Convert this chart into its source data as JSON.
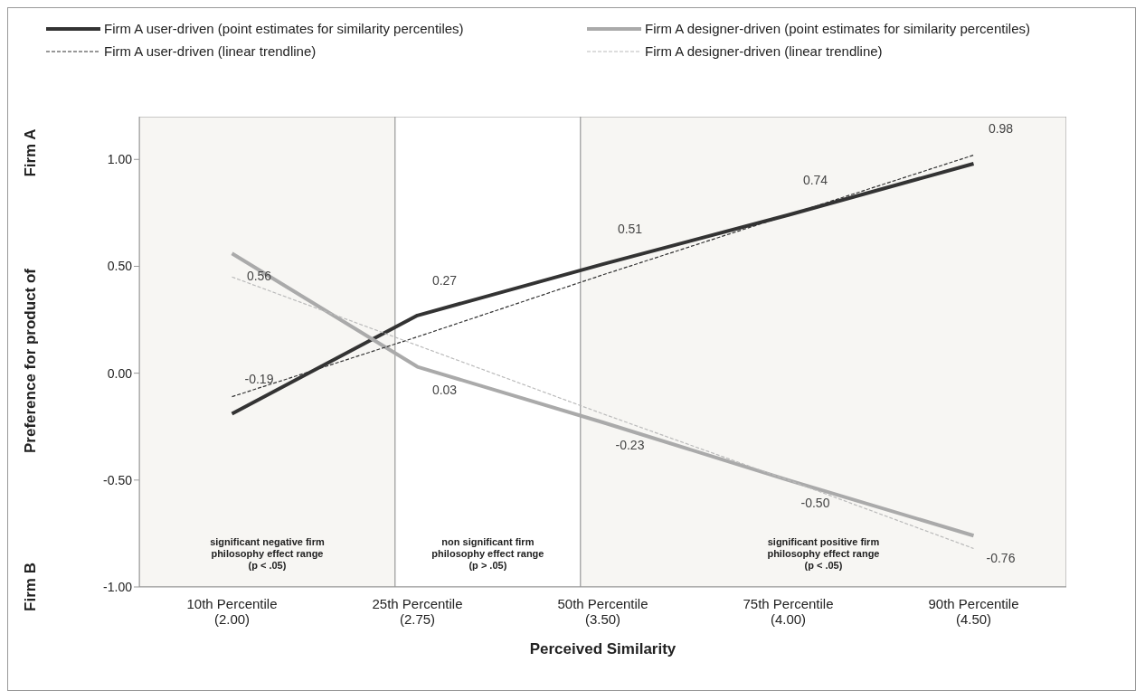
{
  "chart_data": {
    "type": "line",
    "categories": [
      "10th Percentile\n(2.00)",
      "25th Percentile\n(2.75)",
      "50th Percentile\n(3.50)",
      "75th Percentile\n(4.00)",
      "90th Percentile\n(4.50)"
    ],
    "xlabel": "Perceived Similarity",
    "ylabel": "Preference for product of",
    "annotations": [
      "Firm A",
      "Firm B"
    ],
    "series": [
      {
        "name": "Firm A user-driven (point estimates for similarity percentiles)",
        "color": "#333333",
        "values": [
          -0.19,
          0.27,
          0.51,
          0.74,
          0.98
        ],
        "value_labels": [
          "-0.19",
          "0.27",
          "0.51",
          "0.74",
          "0.98"
        ],
        "line_style": "solid"
      },
      {
        "name": "Firm A designer-driven (point estimates for similarity percentiles)",
        "color": "#aaaaaa",
        "values": [
          0.56,
          0.03,
          -0.23,
          -0.5,
          -0.76
        ],
        "value_labels": [
          "0.56",
          "0.03",
          "-0.23",
          "-0.50",
          "-0.76"
        ],
        "line_style": "solid"
      },
      {
        "name": "Firm A user-driven (linear trendline)",
        "color": "#333333",
        "values": [
          -0.11,
          0.17,
          0.46,
          0.74,
          1.02
        ],
        "line_style": "dashed"
      },
      {
        "name": "Firm A designer-driven (linear trendline)",
        "color": "#bbbbbb",
        "values": [
          0.45,
          0.13,
          -0.19,
          -0.5,
          -0.82
        ],
        "line_style": "dashed"
      }
    ],
    "bands": [
      {
        "axis": "x",
        "from": "10th Percentile\n(2.00)",
        "to": "25th Percentile\n(2.75)",
        "label": "significant negative firm\nphilosophy effect range\n(p < .05)",
        "color": "#f7f6f3"
      },
      {
        "axis": "x",
        "from": "25th Percentile\n(2.75)",
        "to": "50th Percentile\n(3.50)",
        "label": "non significant firm\nphilosophy effect  range\n(p > .05)",
        "color": "#ffffff"
      },
      {
        "axis": "x",
        "from": "50th Percentile\n(3.50)",
        "to": "90th Percentile\n(4.50)",
        "label": "significant positive firm\nphilosophy effect range\n(p < .05)",
        "color": "#f7f6f3"
      }
    ],
    "ylim": [
      -1,
      1.2
    ],
    "yticks": [
      {
        "value": -1,
        "label": "-1.00"
      },
      {
        "value": -0.5,
        "label": "-0.50"
      },
      {
        "value": 0,
        "label": "0.00"
      },
      {
        "value": 0.5,
        "label": "0.50"
      },
      {
        "value": 1,
        "label": "1.00"
      }
    ],
    "legend": "top",
    "grid": false
  }
}
